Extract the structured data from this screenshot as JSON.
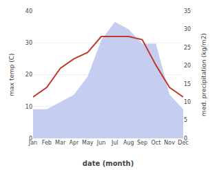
{
  "chart_data": {
    "type": "line",
    "xlabel": "date (month)",
    "ylabel": "max temp (C)",
    "y2label": "med. precipitation (kg/m2)",
    "categories": [
      "Jan",
      "Feb",
      "Mar",
      "Apr",
      "May",
      "Jun",
      "Jul",
      "Aug",
      "Sep",
      "Oct",
      "Nov",
      "Dec"
    ],
    "series": [
      {
        "type": "area",
        "color": "#c5cdf0",
        "axis": "y2",
        "values": [
          8,
          8,
          10,
          12,
          17,
          27,
          32,
          30,
          26,
          26,
          12,
          8
        ]
      },
      {
        "type": "line",
        "color": "#c0392b",
        "values": [
          13,
          16,
          22,
          25,
          27,
          32,
          32,
          32,
          31,
          23,
          16,
          13
        ]
      }
    ],
    "ylim": [
      0,
      40
    ],
    "yticks": [
      0,
      10,
      20,
      30,
      40
    ],
    "y2lim": [
      0,
      35
    ],
    "y2ticks": [
      0,
      5,
      10,
      15,
      20,
      25,
      30,
      35
    ],
    "grid": true
  }
}
